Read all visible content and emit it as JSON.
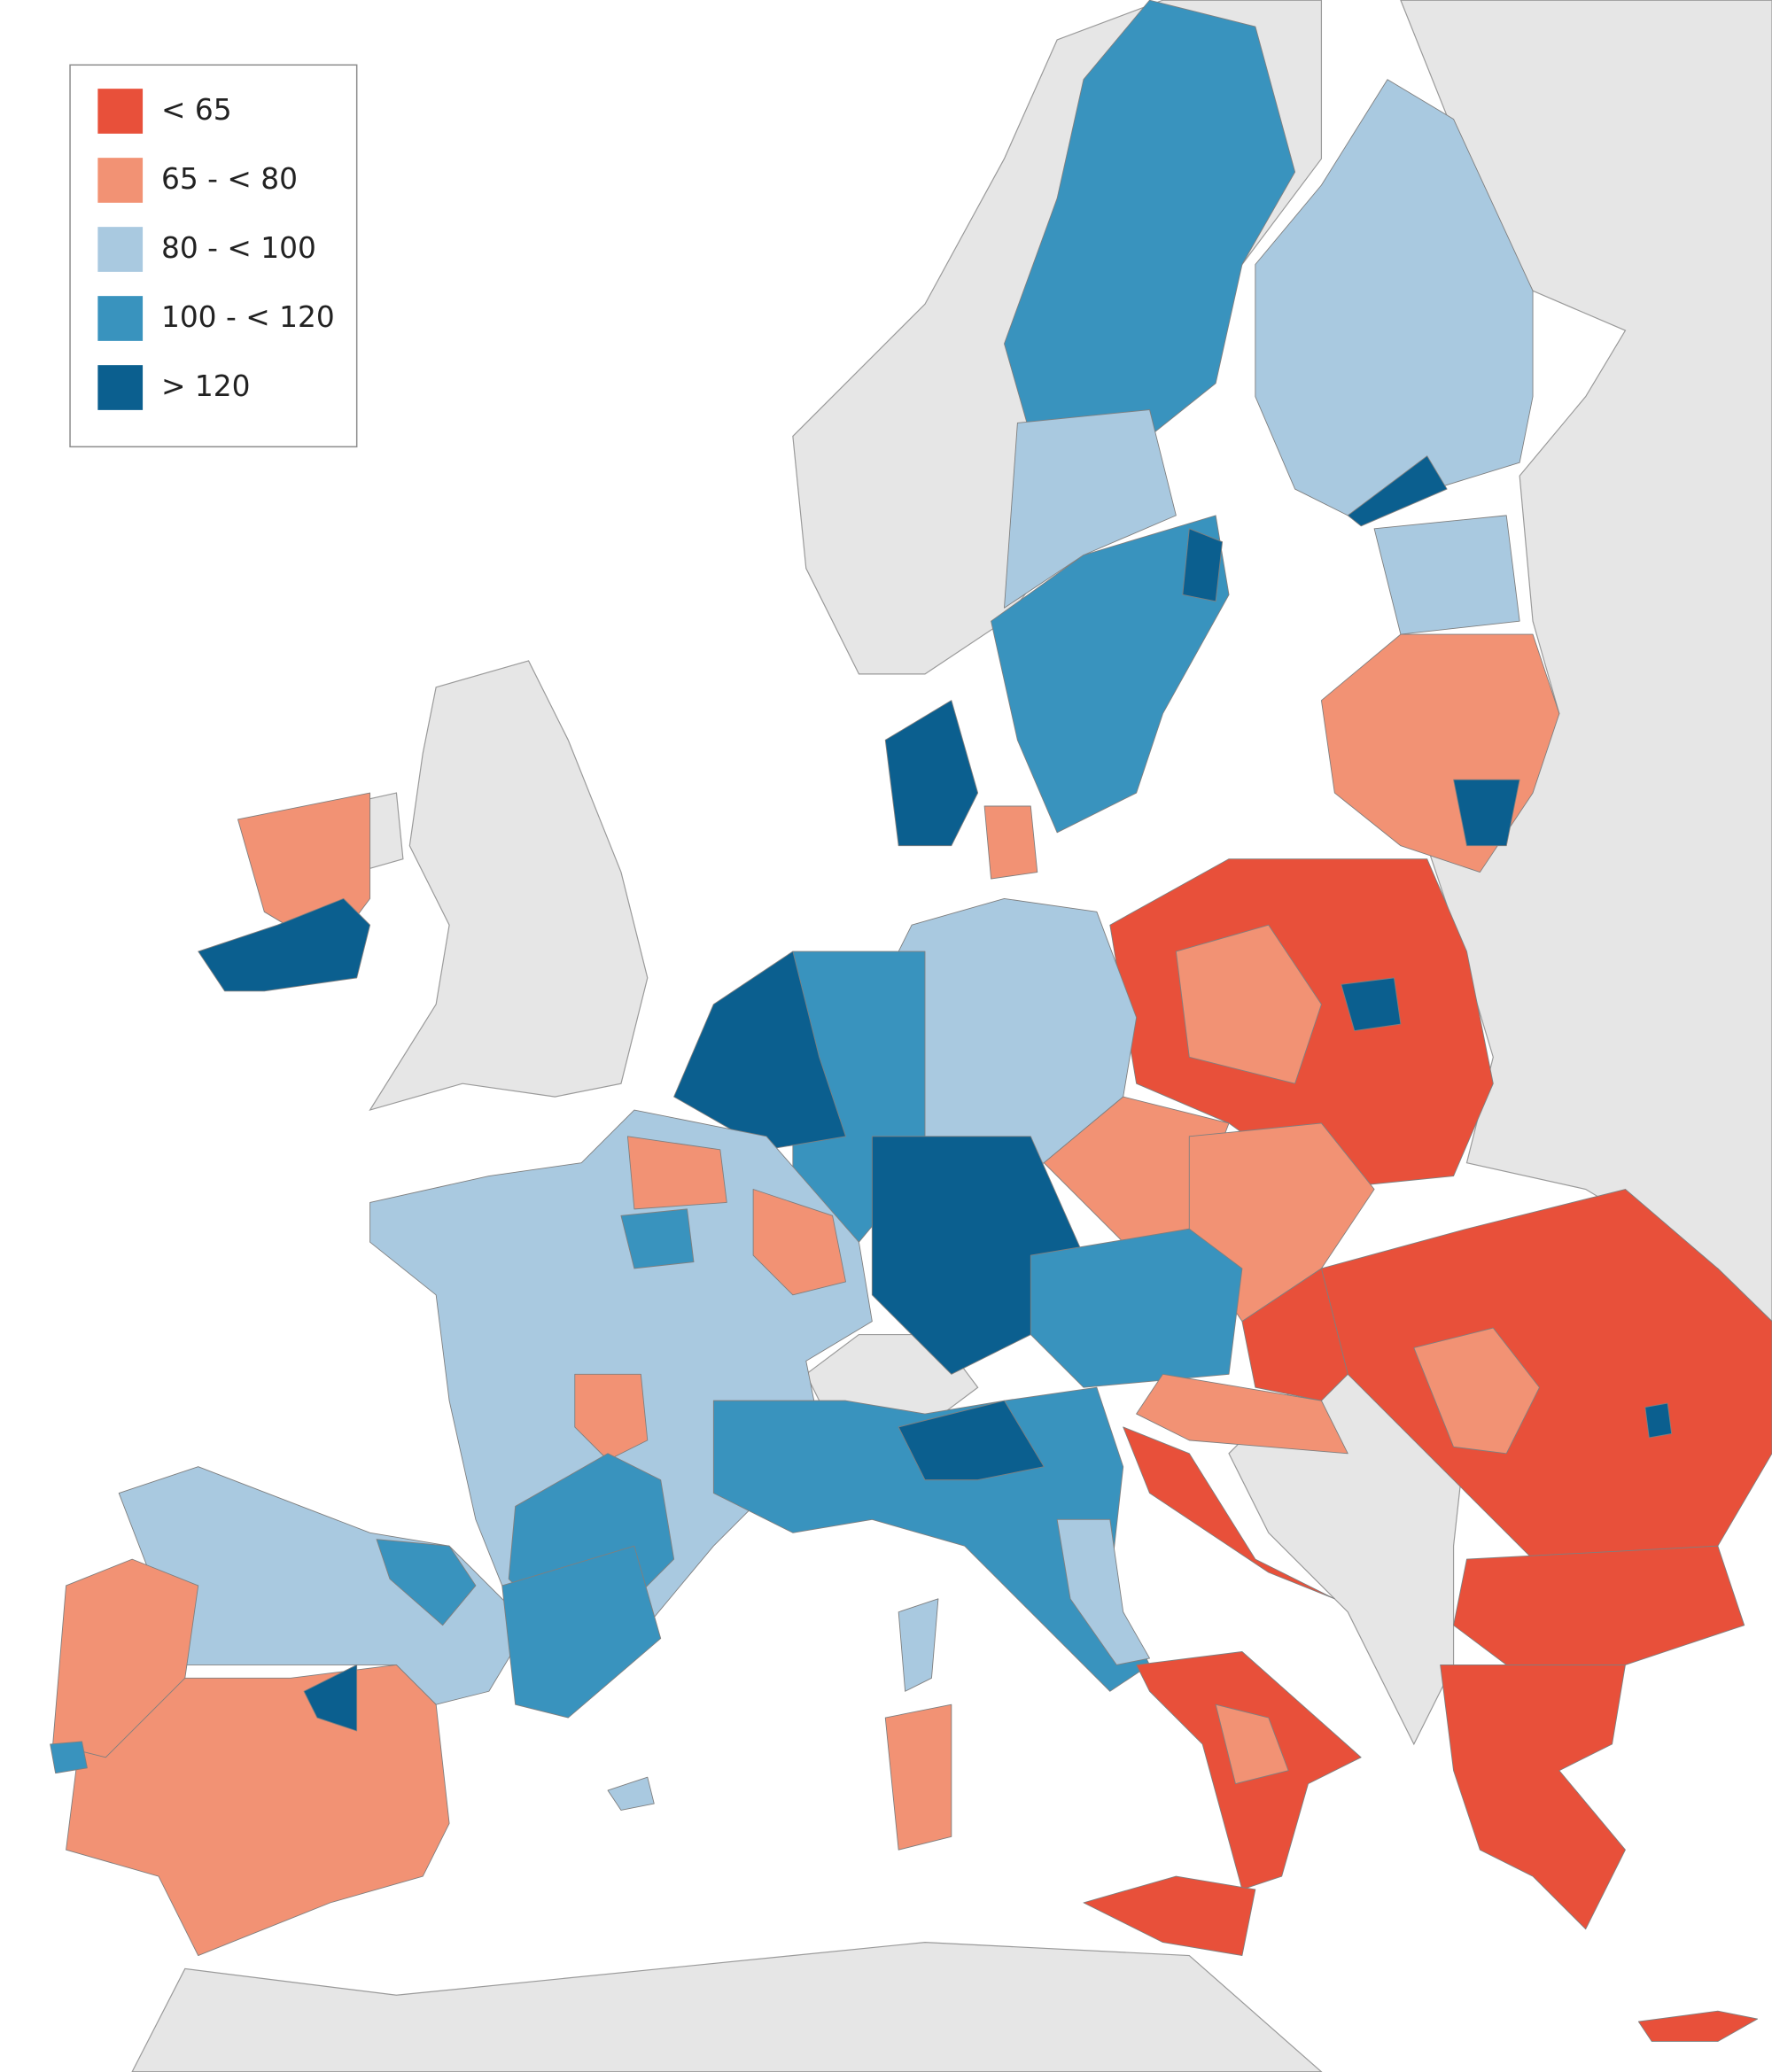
{
  "legend": {
    "items": [
      {
        "label": "< 65",
        "color": "#e8503a"
      },
      {
        "label": "65 - < 80",
        "color": "#f29274"
      },
      {
        "label": "80 - < 100",
        "color": "#a9c9e0"
      },
      {
        "label": "100 - < 120",
        "color": "#3993be"
      },
      {
        "label": "> 120",
        "color": "#0b5f8f"
      }
    ]
  }
}
